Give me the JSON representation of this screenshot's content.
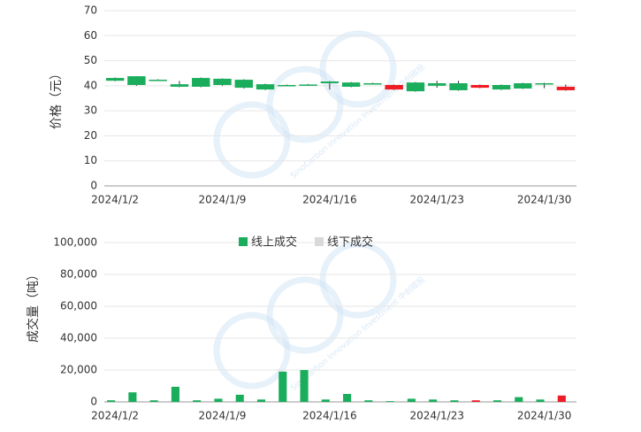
{
  "watermark": "SinoCarbon Innovation Investment 中创碳投",
  "chart_data": [
    {
      "type": "candlestick",
      "ylabel": "价格（元）",
      "categories": [
        "2024/1/2",
        null,
        null,
        null,
        null,
        "2024/1/9",
        null,
        null,
        null,
        null,
        "2024/1/16",
        null,
        null,
        null,
        null,
        "2024/1/23",
        null,
        null,
        null,
        null,
        "2024/1/30",
        null
      ],
      "open": [
        43.1,
        43.8,
        42.4,
        40.6,
        43.1,
        42.8,
        42.4,
        40.6,
        40.3,
        40.5,
        41.7,
        41.3,
        41.0,
        38.5,
        41.3,
        41.0,
        41.0,
        39.2,
        40.3,
        41.0,
        41.0,
        38.2
      ],
      "close": [
        42.0,
        40.3,
        42.4,
        39.6,
        39.6,
        40.3,
        39.2,
        38.5,
        40.3,
        40.5,
        41.0,
        39.6,
        41.0,
        40.3,
        37.8,
        40.0,
        38.2,
        40.3,
        38.5,
        38.9,
        41.0,
        39.6
      ],
      "high": [
        43.3,
        43.8,
        42.6,
        41.9,
        43.3,
        42.9,
        42.6,
        40.8,
        40.5,
        40.7,
        41.9,
        41.5,
        41.2,
        40.5,
        41.5,
        42.0,
        42.0,
        40.5,
        40.5,
        41.2,
        41.2,
        40.5
      ],
      "low": [
        41.8,
        40.0,
        42.2,
        39.4,
        39.4,
        40.0,
        38.9,
        38.3,
        40.1,
        40.3,
        38.5,
        39.4,
        40.8,
        38.3,
        37.6,
        39.2,
        38.0,
        39.0,
        38.3,
        38.7,
        39.0,
        38.0
      ],
      "up_color": "#ee1c25",
      "down_color": "#1aad5c",
      "ylim": [
        0,
        70
      ],
      "yticks": [
        0,
        10,
        20,
        30,
        40,
        50,
        60,
        70
      ],
      "grid": true
    },
    {
      "type": "bar",
      "ylabel": "成交量（吨）",
      "categories": [
        "2024/1/2",
        null,
        null,
        null,
        null,
        "2024/1/9",
        null,
        null,
        null,
        null,
        "2024/1/16",
        null,
        null,
        null,
        null,
        "2024/1/23",
        null,
        null,
        null,
        null,
        "2024/1/30",
        null
      ],
      "series": [
        {
          "name": "线上成交",
          "color": "#1aad5c",
          "values": [
            1000,
            6000,
            1000,
            9500,
            1000,
            2000,
            4500,
            1500,
            19000,
            20000,
            1500,
            5000,
            1000,
            500,
            2000,
            1500,
            1000,
            1000,
            1000,
            3000,
            1500,
            4000
          ],
          "colors": [
            "#1aad5c",
            "#1aad5c",
            "#1aad5c",
            "#1aad5c",
            "#1aad5c",
            "#1aad5c",
            "#1aad5c",
            "#1aad5c",
            "#1aad5c",
            "#1aad5c",
            "#1aad5c",
            "#1aad5c",
            "#1aad5c",
            "#1aad5c",
            "#1aad5c",
            "#1aad5c",
            "#1aad5c",
            "#ee1c25",
            "#1aad5c",
            "#1aad5c",
            "#1aad5c",
            "#ee1c25"
          ]
        },
        {
          "name": "线下成交",
          "color": "#d9d9d9",
          "values": [
            0,
            0,
            0,
            0,
            0,
            0,
            0,
            0,
            0,
            0,
            0,
            0,
            0,
            0,
            0,
            0,
            0,
            0,
            0,
            0,
            0,
            0
          ]
        }
      ],
      "ylim": [
        0,
        100000
      ],
      "yticks": [
        0,
        {
          "value": 20000,
          "label": "20,000"
        },
        {
          "value": 40000,
          "label": "40,000"
        },
        {
          "value": 60000,
          "label": "60,000"
        },
        {
          "value": 80000,
          "label": "80,000"
        },
        {
          "value": 100000,
          "label": "100,000"
        }
      ],
      "grid": true
    }
  ]
}
